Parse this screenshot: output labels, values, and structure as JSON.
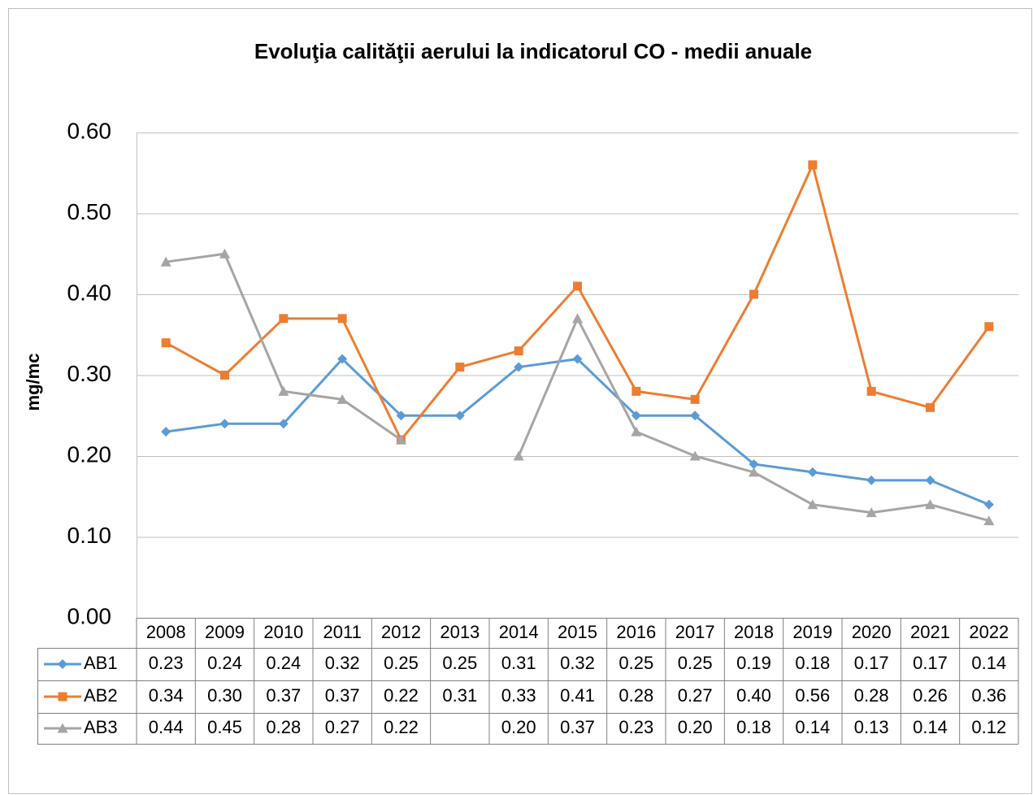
{
  "chart_data": {
    "type": "line",
    "title": "Evoluţia calităţii aerului la indicatorul CO - medii anuale",
    "y_label": "mg/mc",
    "categories": [
      "2008",
      "2009",
      "2010",
      "2011",
      "2012",
      "2013",
      "2014",
      "2015",
      "2016",
      "2017",
      "2018",
      "2019",
      "2020",
      "2021",
      "2022"
    ],
    "series": [
      {
        "name": "AB1",
        "color": "#5b9bd5",
        "marker": "diamond",
        "values": [
          0.23,
          0.24,
          0.24,
          0.32,
          0.25,
          0.25,
          0.31,
          0.32,
          0.25,
          0.25,
          0.19,
          0.18,
          0.17,
          0.17,
          0.14
        ],
        "value_labels": [
          "0.23",
          "0.24",
          "0.24",
          "0.32",
          "0.25",
          "0.25",
          "0.31",
          "0.32",
          "0.25",
          "0.25",
          "0.19",
          "0.18",
          "0.17",
          "0.17",
          "0.14"
        ]
      },
      {
        "name": "AB2",
        "color": "#ed7d31",
        "marker": "square",
        "values": [
          0.34,
          0.3,
          0.37,
          0.37,
          0.22,
          0.31,
          0.33,
          0.41,
          0.28,
          0.27,
          0.4,
          0.56,
          0.28,
          0.26,
          0.36
        ],
        "value_labels": [
          "0.34",
          "0.30",
          "0.37",
          "0.37",
          "0.22",
          "0.31",
          "0.33",
          "0.41",
          "0.28",
          "0.27",
          "0.40",
          "0.56",
          "0.28",
          "0.26",
          "0.36"
        ]
      },
      {
        "name": "AB3",
        "color": "#a5a5a5",
        "marker": "triangle",
        "values": [
          0.44,
          0.45,
          0.28,
          0.27,
          0.22,
          null,
          0.2,
          0.37,
          0.23,
          0.2,
          0.18,
          0.14,
          0.13,
          0.14,
          0.12
        ],
        "value_labels": [
          "0.44",
          "0.45",
          "0.28",
          "0.27",
          "0.22",
          null,
          "0.20",
          "0.37",
          "0.23",
          "0.20",
          "0.18",
          "0.14",
          "0.13",
          "0.14",
          "0.12"
        ]
      }
    ],
    "ylim": [
      0,
      0.6
    ],
    "yticks": [
      {
        "value": 0,
        "label": "0.00"
      },
      {
        "value": 0.1,
        "label": "0.10"
      },
      {
        "value": 0.2,
        "label": "0.20"
      },
      {
        "value": 0.3,
        "label": "0.30"
      },
      {
        "value": 0.4,
        "label": "0.40"
      },
      {
        "value": 0.5,
        "label": "0.50"
      },
      {
        "value": 0.6,
        "label": "0.60"
      }
    ],
    "grid": true,
    "data_table": true
  }
}
